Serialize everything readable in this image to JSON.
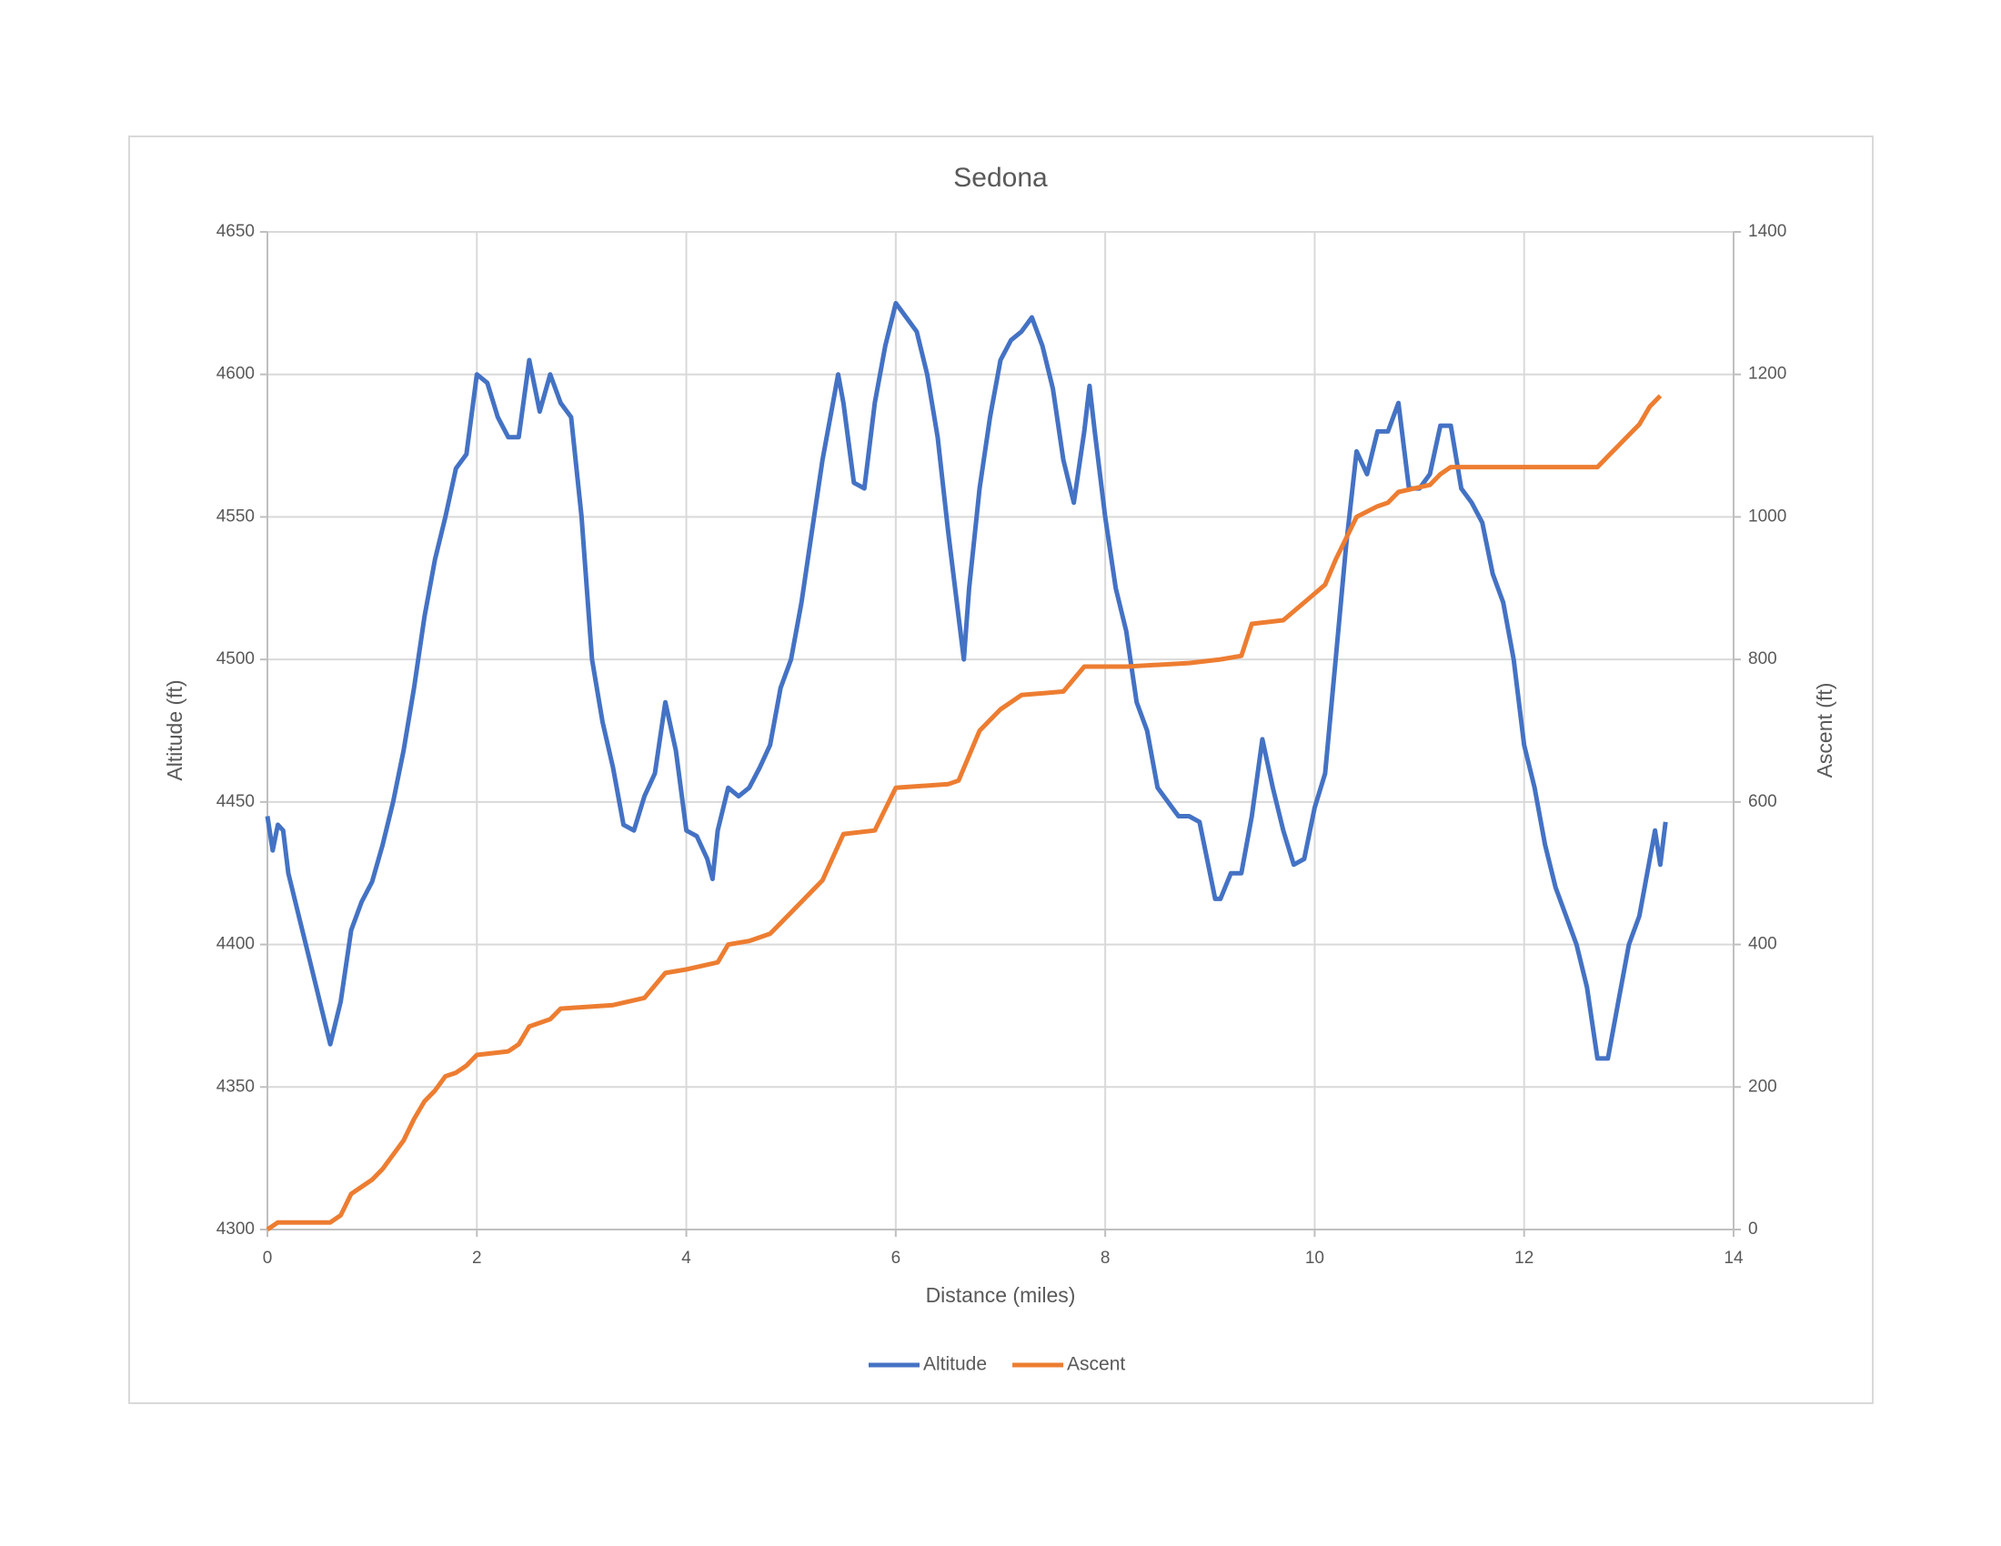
{
  "chart_data": {
    "type": "line",
    "title": "Sedona",
    "x_label": "Distance (miles)",
    "y_label": "Altitude (ft)",
    "y2_label": "Ascent (ft)",
    "xlim": [
      0,
      14
    ],
    "xticks": [
      0,
      2,
      4,
      6,
      8,
      10,
      12,
      14
    ],
    "ylim": [
      4300,
      4650
    ],
    "yticks": [
      4300,
      4350,
      4400,
      4450,
      4500,
      4550,
      4600,
      4650
    ],
    "y2lim": [
      0,
      1400
    ],
    "y2ticks": [
      0,
      200,
      400,
      600,
      800,
      1000,
      1200,
      1400
    ],
    "grid": true,
    "legend": "bottom",
    "series": [
      {
        "name": "Altitude",
        "color": "#4472c4",
        "x": [
          0,
          0.05,
          0.1,
          0.15,
          0.2,
          0.3,
          0.4,
          0.5,
          0.6,
          0.7,
          0.8,
          0.9,
          1.0,
          1.1,
          1.2,
          1.3,
          1.4,
          1.5,
          1.6,
          1.7,
          1.8,
          1.9,
          2.0,
          2.1,
          2.2,
          2.3,
          2.4,
          2.5,
          2.6,
          2.7,
          2.8,
          2.9,
          3.0,
          3.1,
          3.2,
          3.3,
          3.4,
          3.5,
          3.6,
          3.7,
          3.8,
          3.9,
          4.0,
          4.1,
          4.2,
          4.25,
          4.3,
          4.4,
          4.5,
          4.6,
          4.7,
          4.8,
          4.9,
          5.0,
          5.1,
          5.2,
          5.3,
          5.4,
          5.45,
          5.5,
          5.6,
          5.7,
          5.8,
          5.9,
          6.0,
          6.1,
          6.2,
          6.3,
          6.4,
          6.5,
          6.6,
          6.65,
          6.7,
          6.8,
          6.9,
          7.0,
          7.1,
          7.2,
          7.3,
          7.4,
          7.5,
          7.6,
          7.7,
          7.8,
          7.85,
          7.9,
          8.0,
          8.1,
          8.2,
          8.3,
          8.4,
          8.5,
          8.6,
          8.7,
          8.8,
          8.9,
          9.0,
          9.05,
          9.1,
          9.2,
          9.3,
          9.4,
          9.5,
          9.6,
          9.7,
          9.8,
          9.9,
          10.0,
          10.1,
          10.2,
          10.3,
          10.4,
          10.5,
          10.6,
          10.7,
          10.8,
          10.9,
          11.0,
          11.1,
          11.2,
          11.3,
          11.4,
          11.5,
          11.6,
          11.7,
          11.8,
          11.9,
          12.0,
          12.1,
          12.2,
          12.3,
          12.4,
          12.5,
          12.6,
          12.7,
          12.8,
          12.9,
          13.0,
          13.1,
          13.2,
          13.25,
          13.3,
          13.35
        ],
        "values": [
          4445,
          4433,
          4442,
          4440,
          4425,
          4410,
          4395,
          4380,
          4365,
          4380,
          4405,
          4415,
          4422,
          4435,
          4450,
          4468,
          4490,
          4515,
          4535,
          4550,
          4567,
          4572,
          4600,
          4597,
          4585,
          4578,
          4578,
          4605,
          4587,
          4600,
          4590,
          4585,
          4550,
          4500,
          4478,
          4462,
          4442,
          4440,
          4452,
          4460,
          4485,
          4468,
          4440,
          4438,
          4430,
          4423,
          4440,
          4455,
          4452,
          4455,
          4462,
          4470,
          4490,
          4500,
          4520,
          4545,
          4570,
          4590,
          4600,
          4590,
          4562,
          4560,
          4590,
          4610,
          4625,
          4620,
          4615,
          4600,
          4578,
          4545,
          4515,
          4500,
          4525,
          4560,
          4585,
          4605,
          4612,
          4615,
          4620,
          4610,
          4595,
          4570,
          4555,
          4580,
          4596,
          4580,
          4550,
          4525,
          4510,
          4485,
          4475,
          4455,
          4450,
          4445,
          4445,
          4443,
          4425,
          4416,
          4416,
          4425,
          4425,
          4445,
          4472,
          4455,
          4440,
          4428,
          4430,
          4448,
          4460,
          4500,
          4540,
          4573,
          4565,
          4580,
          4580,
          4590,
          4560,
          4560,
          4565,
          4582,
          4582,
          4560,
          4555,
          4548,
          4530,
          4520,
          4500,
          4470,
          4455,
          4435,
          4420,
          4410,
          4400,
          4385,
          4360,
          4360,
          4380,
          4400,
          4410,
          4430,
          4440,
          4428,
          4443
        ]
      },
      {
        "name": "Ascent",
        "color": "#ed7d31",
        "axis": "y2",
        "x": [
          0,
          0.1,
          0.6,
          0.7,
          0.8,
          0.9,
          1.0,
          1.1,
          1.2,
          1.3,
          1.4,
          1.5,
          1.6,
          1.7,
          1.8,
          1.9,
          2.0,
          2.3,
          2.4,
          2.5,
          2.7,
          2.8,
          3.3,
          3.6,
          3.8,
          4.0,
          4.3,
          4.4,
          4.6,
          4.8,
          4.9,
          5.1,
          5.3,
          5.5,
          5.8,
          5.9,
          6.0,
          6.5,
          6.6,
          6.8,
          7.0,
          7.2,
          7.6,
          7.8,
          8.2,
          8.8,
          9.1,
          9.3,
          9.4,
          9.7,
          9.9,
          10.1,
          10.2,
          10.4,
          10.6,
          10.7,
          10.8,
          11.1,
          11.2,
          11.3,
          12.7,
          12.8,
          13.0,
          13.1,
          13.2,
          13.3
        ],
        "values": [
          0,
          10,
          10,
          20,
          50,
          60,
          70,
          85,
          105,
          125,
          155,
          180,
          195,
          215,
          220,
          230,
          245,
          250,
          260,
          285,
          295,
          310,
          315,
          325,
          360,
          365,
          375,
          400,
          405,
          415,
          430,
          460,
          490,
          555,
          560,
          590,
          620,
          625,
          630,
          700,
          730,
          750,
          755,
          790,
          790,
          795,
          800,
          805,
          850,
          855,
          880,
          905,
          940,
          1000,
          1015,
          1020,
          1035,
          1045,
          1060,
          1070,
          1070,
          1085,
          1115,
          1130,
          1155,
          1170
        ]
      }
    ]
  }
}
